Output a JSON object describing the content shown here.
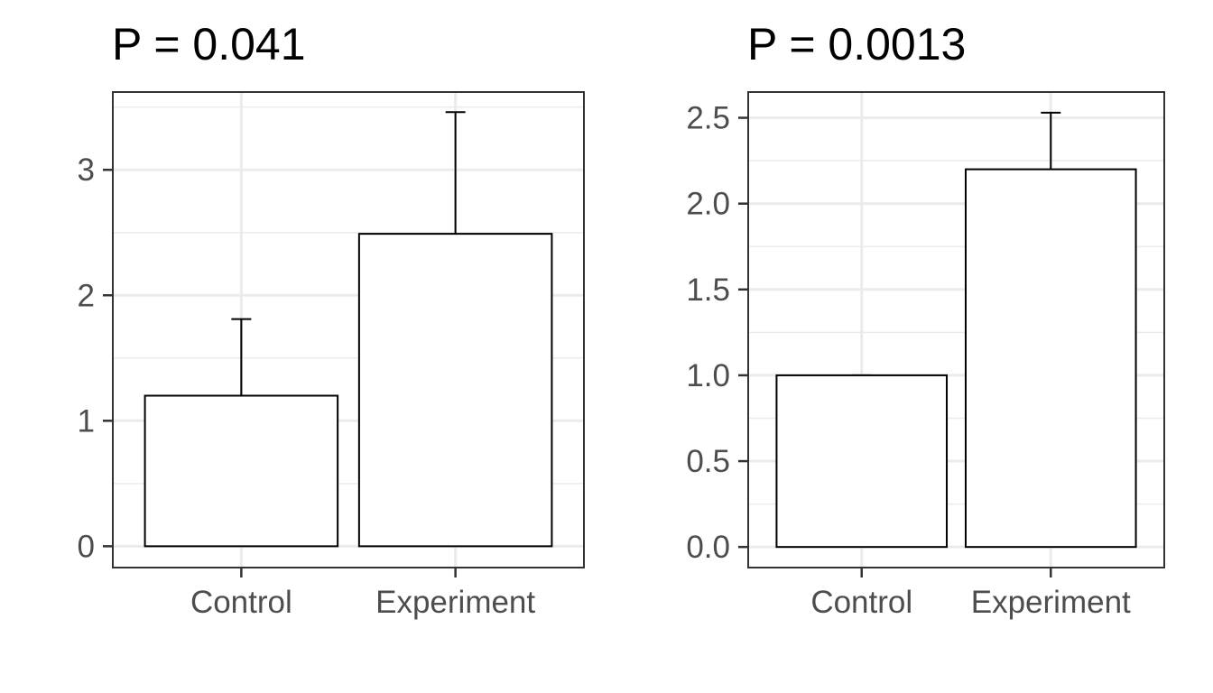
{
  "chart_data": [
    {
      "type": "bar",
      "title": "P =  0.041",
      "xlabel": "",
      "ylabel": "",
      "categories": [
        "Control",
        "Experiment"
      ],
      "values": [
        1.2,
        2.49
      ],
      "error_upper": [
        1.81,
        3.46
      ],
      "ylim": [
        -0.17,
        3.62
      ],
      "yticks": [
        0,
        1,
        2,
        3
      ],
      "ytick_labels": [
        "0",
        "1",
        "2",
        "3"
      ],
      "grid": true,
      "bar_fill": "#ffffff",
      "bar_stroke": "#000000",
      "grid_color": "#ebebeb"
    },
    {
      "type": "bar",
      "title": "P =  0.0013",
      "xlabel": "",
      "ylabel": "",
      "categories": [
        "Control",
        "Experiment"
      ],
      "values": [
        1.0,
        2.2
      ],
      "error_upper": [
        1.0,
        2.53
      ],
      "ylim": [
        -0.12,
        2.65
      ],
      "yticks": [
        0,
        0.5,
        1,
        1.5,
        2,
        2.5
      ],
      "ytick_labels": [
        "0.0",
        "0.5",
        "1.0",
        "1.5",
        "2.0",
        "2.5"
      ],
      "grid": true,
      "bar_fill": "#ffffff",
      "bar_stroke": "#000000",
      "grid_color": "#ebebeb"
    }
  ]
}
